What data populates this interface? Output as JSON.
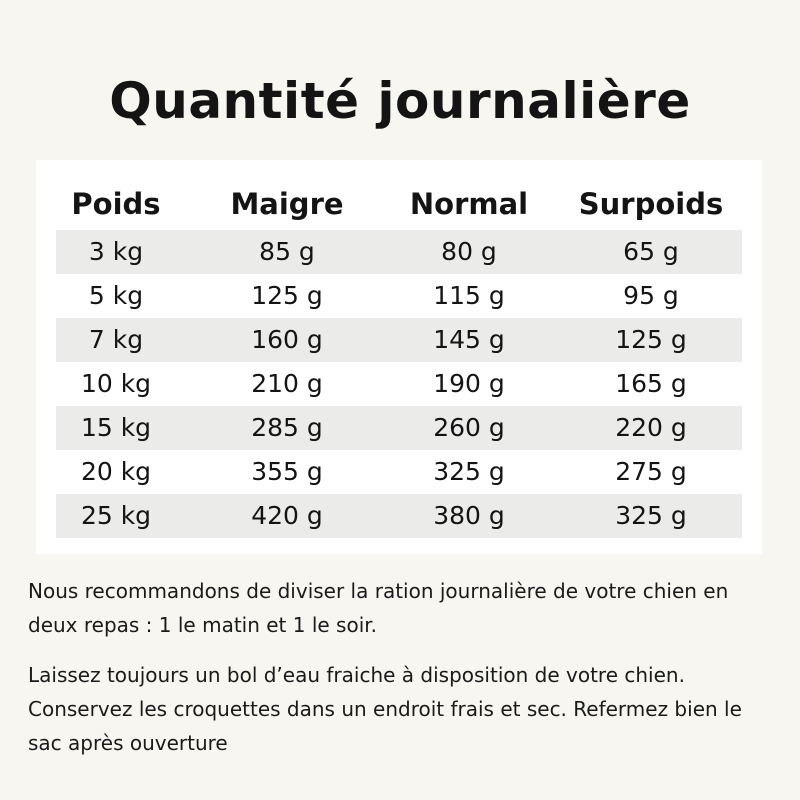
{
  "title": "Quantité journalière",
  "table": {
    "headers": [
      "Poids",
      "Maigre",
      "Normal",
      "Surpoids"
    ],
    "rows": [
      [
        "3 kg",
        "85 g",
        "80 g",
        "65 g"
      ],
      [
        "5 kg",
        "125 g",
        "115 g",
        "95 g"
      ],
      [
        "7 kg",
        "160 g",
        "145 g",
        "125 g"
      ],
      [
        "10 kg",
        "210 g",
        "190 g",
        "165 g"
      ],
      [
        "15 kg",
        "285 g",
        "260 g",
        "220 g"
      ],
      [
        "20 kg",
        "355 g",
        "325 g",
        "275 g"
      ],
      [
        "25 kg",
        "420 g",
        "380 g",
        "325 g"
      ]
    ]
  },
  "notes": {
    "paragraph1": "Nous recommandons de diviser la ration journalière de votre chien en deux repas : 1 le matin et 1 le soir.",
    "paragraph2": "Laissez toujours un bol d’eau fraiche à disposition de votre chien. Conservez les croquettes dans un endroit frais et sec. Refermez bien le sac après ouverture"
  },
  "colors": {
    "background": "#f7f6f1",
    "table_background": "#ffffff",
    "row_shade": "#ebebea",
    "text": "#141414"
  }
}
